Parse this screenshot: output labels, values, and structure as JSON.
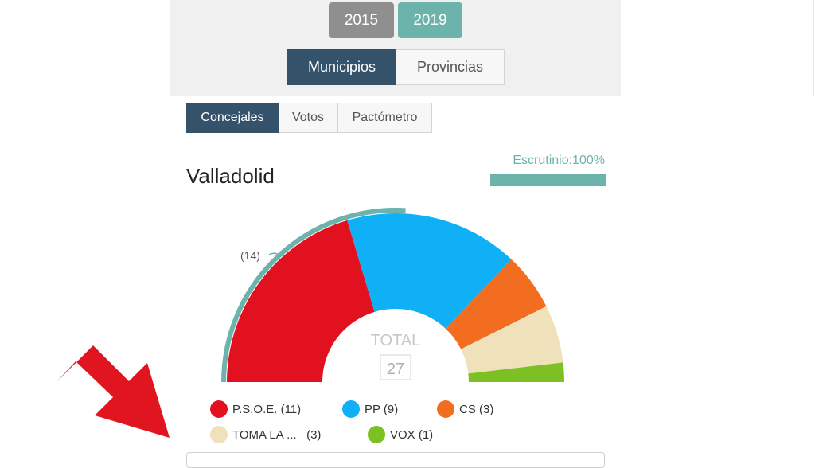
{
  "years": {
    "y2015": {
      "label": "2015",
      "color": "#8f8f8f"
    },
    "y2019": {
      "label": "2019",
      "color": "#6bb3ab"
    }
  },
  "scope_tabs": {
    "municipios": {
      "label": "Municipios",
      "active": true
    },
    "provincias": {
      "label": "Provincias",
      "active": false
    }
  },
  "view_tabs": {
    "concejales": {
      "label": "Concejales",
      "active": true
    },
    "votos": {
      "label": "Votos",
      "active": false
    },
    "pactometro": {
      "label": "Pactómetro",
      "active": false
    }
  },
  "municipality": "Valladolid",
  "scrutiny": {
    "label": "Escrutinio:100%",
    "percent": 100,
    "color": "#6bb3ab"
  },
  "chart_data": {
    "type": "pie",
    "style": "semicircle",
    "total_label": "TOTAL",
    "total_value": "27",
    "majority_label": "(14)",
    "majority_seats": 14,
    "series": [
      {
        "name": "P.S.O.E.",
        "value": 11,
        "color": "#e1111f"
      },
      {
        "name": "PP",
        "value": 9,
        "color": "#10b0f6"
      },
      {
        "name": "CS",
        "value": 3,
        "color": "#f36d21"
      },
      {
        "name": "TOMA LA ...",
        "value": 3,
        "color": "#efe2ba"
      },
      {
        "name": "VOX",
        "value": 1,
        "color": "#7cc023"
      }
    ]
  },
  "legend": [
    {
      "label": "P.S.O.E. (11)",
      "color": "#e1111f"
    },
    {
      "label": "PP (9)",
      "color": "#10b0f6"
    },
    {
      "label": "CS (3)",
      "color": "#f36d21"
    },
    {
      "label": "TOMA LA ...   (3)",
      "color": "#efe2ba"
    },
    {
      "label": "VOX (1)",
      "color": "#7cc023"
    }
  ],
  "colors": {
    "accent_dark": "#35526b",
    "annotation_arrow": "#e1151f",
    "teal": "#6bb3ab"
  }
}
